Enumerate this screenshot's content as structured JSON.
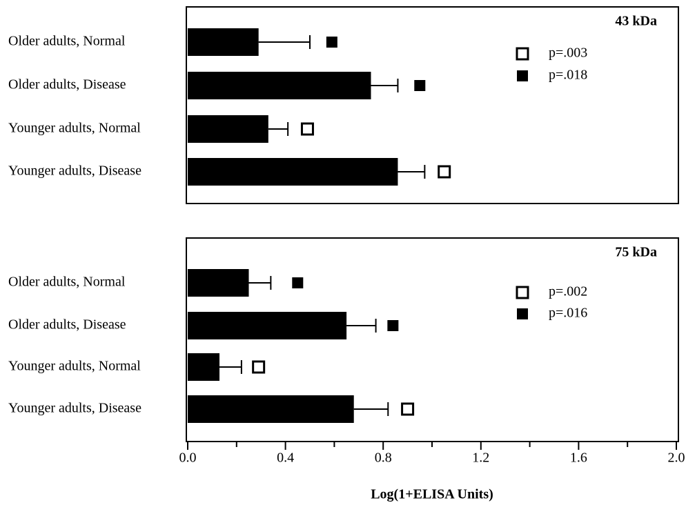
{
  "chart_data": [
    {
      "type": "bar",
      "title": "43 kDa",
      "categories": [
        "Older adults, Normal",
        "Older adults, Disease",
        "Younger adults, Normal",
        "Younger adults, Disease"
      ],
      "values": [
        0.29,
        0.75,
        0.33,
        0.86
      ],
      "errors": [
        0.21,
        0.11,
        0.08,
        0.11
      ],
      "markers": {
        "values": [
          0.59,
          0.95,
          0.49,
          1.05
        ],
        "symbols": [
          "filled",
          "filled",
          "open",
          "open"
        ]
      },
      "legend": [
        {
          "label": "p=.003",
          "symbol": "open"
        },
        {
          "label": "p=.018",
          "symbol": "filled"
        }
      ],
      "color": "#000000",
      "xlim": [
        0,
        2.0
      ]
    },
    {
      "type": "bar",
      "title": "75 kDa",
      "categories": [
        "Older adults, Normal",
        "Older adults, Disease",
        "Younger adults, Normal",
        "Younger adults, Disease"
      ],
      "values": [
        0.25,
        0.65,
        0.13,
        0.68
      ],
      "errors": [
        0.09,
        0.12,
        0.09,
        0.14
      ],
      "markers": {
        "values": [
          0.45,
          0.84,
          0.29,
          0.9
        ],
        "symbols": [
          "filled",
          "filled",
          "open",
          "open"
        ]
      },
      "legend": [
        {
          "label": "p=.002",
          "symbol": "open"
        },
        {
          "label": "p=.016",
          "symbol": "filled"
        }
      ],
      "color": "#000000",
      "xlim": [
        0,
        2.0
      ],
      "xticks": [
        {
          "value": 0,
          "label": "0.0"
        },
        0.4,
        0.8,
        1.2,
        1.6,
        {
          "value": 2.0,
          "label": "2.0"
        }
      ],
      "xminorticks": [
        0.2,
        0.6,
        1.0,
        1.4,
        1.8
      ],
      "xlabel": "Log(1+ELISA Units)"
    }
  ]
}
